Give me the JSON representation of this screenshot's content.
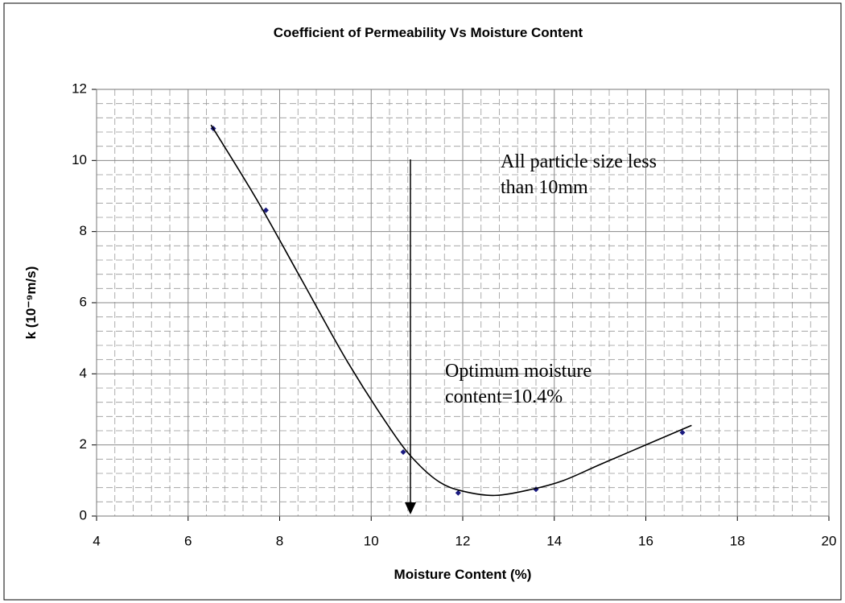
{
  "chart_data": {
    "type": "scatter",
    "title": "Coefficient of Permeability Vs Moisture Content",
    "xlabel": "Moisture Content (%)",
    "ylabel": "k (10⁻⁹m/s)",
    "xlim": [
      4,
      20
    ],
    "xticks": [
      4,
      6,
      8,
      10,
      12,
      14,
      16,
      18,
      20
    ],
    "ylim": [
      0,
      12
    ],
    "yticks": [
      0,
      2,
      4,
      6,
      8,
      10,
      12
    ],
    "grid": true,
    "minor_divisions": 5,
    "series": [
      {
        "color": "#1a1a80",
        "x": [
          6.55,
          7.7,
          10.7,
          11.9,
          13.6,
          16.8
        ],
        "values": [
          10.9,
          8.6,
          1.8,
          0.65,
          0.75,
          2.35
        ]
      },
      {
        "color": "#000000",
        "line": true,
        "x": [
          6.5,
          7.5,
          8.5,
          9.5,
          10.5,
          11,
          11.5,
          12,
          12.7,
          13.5,
          14.2,
          15,
          16,
          17
        ],
        "values": [
          11.0,
          8.9,
          6.6,
          4.3,
          2.3,
          1.5,
          0.95,
          0.7,
          0.58,
          0.75,
          1.0,
          1.45,
          2.0,
          2.55
        ]
      }
    ],
    "annotations": [
      {
        "lines": [
          "All particle size less",
          "than 10mm"
        ]
      },
      {
        "lines": [
          "Optimum moisture",
          "content=10.4%"
        ]
      }
    ]
  }
}
